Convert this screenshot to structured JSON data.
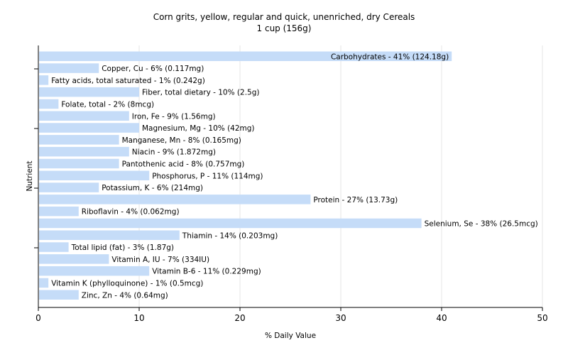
{
  "chart_data": {
    "type": "bar",
    "orientation": "horizontal",
    "title": "Corn grits, yellow, regular and quick, unenriched, dry Cereals",
    "subtitle": "1 cup (156g)",
    "xlabel": "% Daily Value",
    "ylabel": "Nutrient",
    "xlim": [
      0,
      50
    ],
    "xticks": [
      0,
      10,
      20,
      30,
      40,
      50
    ],
    "grid": true,
    "bar_color": "#c5dcf8",
    "bars": [
      {
        "name": "Carbohydrates",
        "value": 41,
        "label": "Carbohydrates - 41% (124.18g)"
      },
      {
        "name": "Copper, Cu",
        "value": 6,
        "label": "Copper, Cu - 6% (0.117mg)"
      },
      {
        "name": "Fatty acids, total saturated",
        "value": 1,
        "label": "Fatty acids, total saturated - 1% (0.242g)"
      },
      {
        "name": "Fiber, total dietary",
        "value": 10,
        "label": "Fiber, total dietary - 10% (2.5g)"
      },
      {
        "name": "Folate, total",
        "value": 2,
        "label": "Folate, total - 2% (8mcg)"
      },
      {
        "name": "Iron, Fe",
        "value": 9,
        "label": "Iron, Fe - 9% (1.56mg)"
      },
      {
        "name": "Magnesium, Mg",
        "value": 10,
        "label": "Magnesium, Mg - 10% (42mg)"
      },
      {
        "name": "Manganese, Mn",
        "value": 8,
        "label": "Manganese, Mn - 8% (0.165mg)"
      },
      {
        "name": "Niacin",
        "value": 9,
        "label": "Niacin - 9% (1.872mg)"
      },
      {
        "name": "Pantothenic acid",
        "value": 8,
        "label": "Pantothenic acid - 8% (0.757mg)"
      },
      {
        "name": "Phosphorus, P",
        "value": 11,
        "label": "Phosphorus, P - 11% (114mg)"
      },
      {
        "name": "Potassium, K",
        "value": 6,
        "label": "Potassium, K - 6% (214mg)"
      },
      {
        "name": "Protein",
        "value": 27,
        "label": "Protein - 27% (13.73g)"
      },
      {
        "name": "Riboflavin",
        "value": 4,
        "label": "Riboflavin - 4% (0.062mg)"
      },
      {
        "name": "Selenium, Se",
        "value": 38,
        "label": "Selenium, Se - 38% (26.5mcg)"
      },
      {
        "name": "Thiamin",
        "value": 14,
        "label": "Thiamin - 14% (0.203mg)"
      },
      {
        "name": "Total lipid (fat)",
        "value": 3,
        "label": "Total lipid (fat) - 3% (1.87g)"
      },
      {
        "name": "Vitamin A, IU",
        "value": 7,
        "label": "Vitamin A, IU - 7% (334IU)"
      },
      {
        "name": "Vitamin B-6",
        "value": 11,
        "label": "Vitamin B-6 - 11% (0.229mg)"
      },
      {
        "name": "Vitamin K (phylloquinone)",
        "value": 1,
        "label": "Vitamin K (phylloquinone) - 1% (0.5mcg)"
      },
      {
        "name": "Zinc, Zn",
        "value": 4,
        "label": "Zinc, Zn - 4% (0.64mg)"
      }
    ]
  }
}
